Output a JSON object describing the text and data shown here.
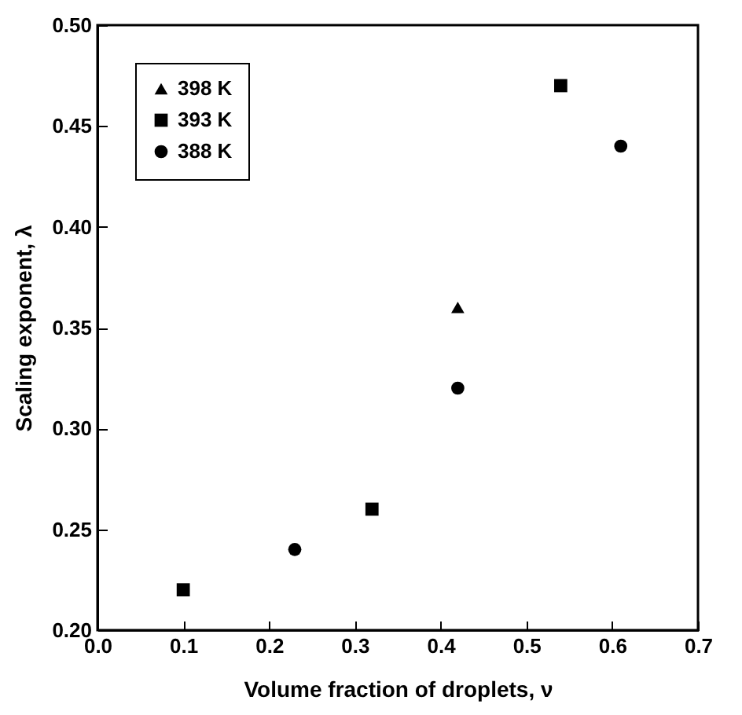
{
  "chart_data": {
    "type": "scatter",
    "xlabel": "Volume fraction of droplets, ν",
    "ylabel": "Scaling exponent, λ",
    "xlim": [
      0.0,
      0.7
    ],
    "xticks": [
      {
        "value": 0,
        "label": "0.0"
      },
      0.1,
      0.2,
      0.3,
      0.4,
      0.5,
      0.6,
      0.7
    ],
    "ylim": [
      0.2,
      0.5
    ],
    "yticks": [
      {
        "value": 0.2,
        "label": "0.20"
      },
      0.25,
      {
        "value": 0.3,
        "label": "0.30"
      },
      0.35,
      {
        "value": 0.4,
        "label": "0.40"
      },
      0.45,
      {
        "value": 0.5,
        "label": "0.50"
      }
    ],
    "legend": "top left",
    "grid": false,
    "series": [
      {
        "name": "398 K",
        "color": "#000000",
        "marker": "triangle",
        "x": [
          0.42
        ],
        "values": [
          0.36
        ]
      },
      {
        "name": "393 K",
        "color": "#000000",
        "marker": "square",
        "x": [
          0.1,
          0.32,
          0.54
        ],
        "values": [
          0.22,
          0.26,
          0.47
        ]
      },
      {
        "name": "388 K",
        "color": "#000000",
        "marker": "circle",
        "x": [
          0.23,
          0.42,
          0.61
        ],
        "values": [
          0.24,
          0.32,
          0.44
        ]
      }
    ]
  }
}
